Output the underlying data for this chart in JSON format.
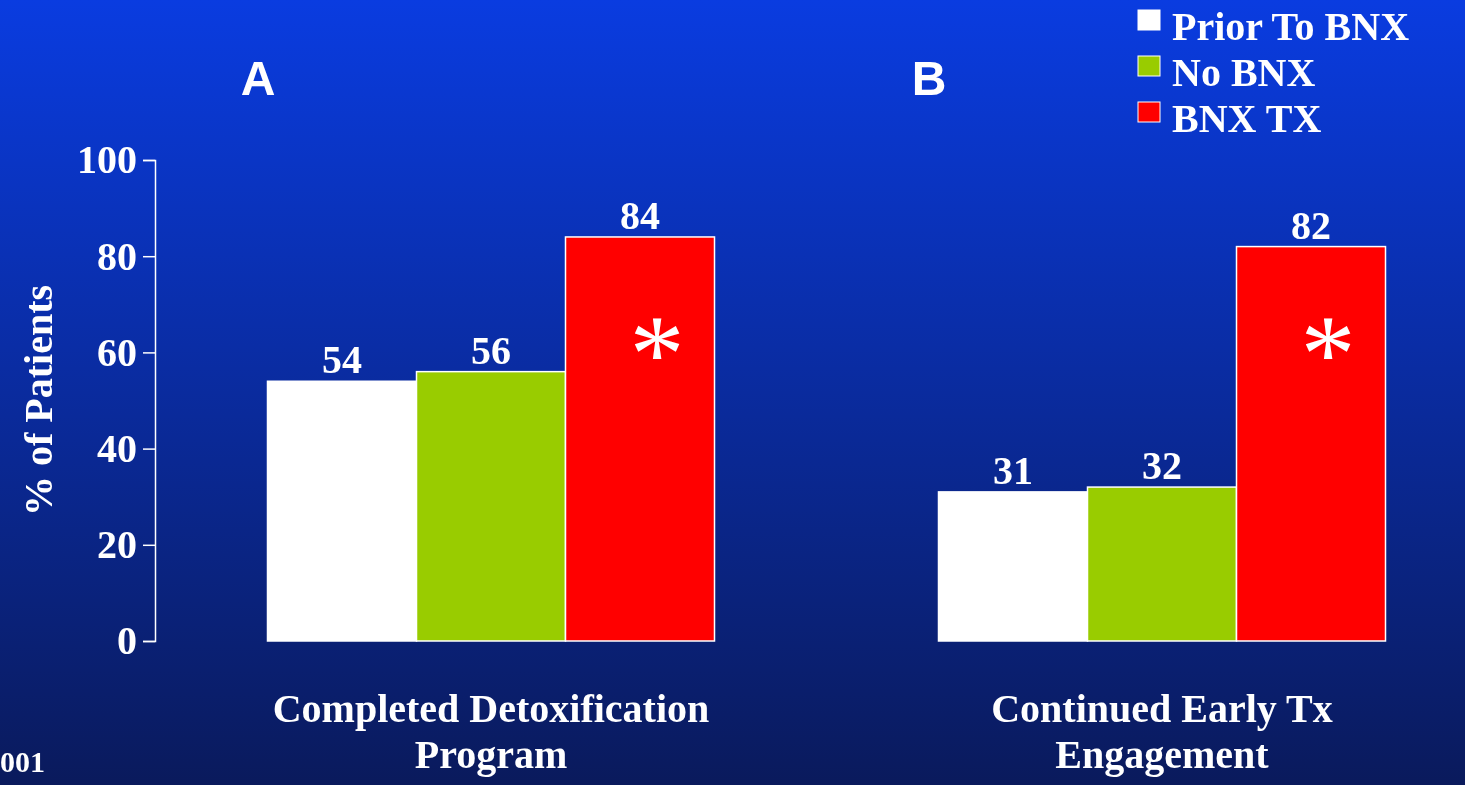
{
  "chart_data": {
    "type": "bar",
    "ylabel": "% of Patients",
    "categories": [
      "Completed Detoxification Program",
      "Continued Early Tx Engagement"
    ],
    "series": [
      {
        "name": "Prior To BNX",
        "color": "#ffffff",
        "values": [
          54,
          31
        ]
      },
      {
        "name": "No BNX",
        "color": "#99cc00",
        "values": [
          56,
          32
        ]
      },
      {
        "name": "BNX TX",
        "color": "#ff0000",
        "values": [
          84,
          82
        ]
      }
    ],
    "ylim": [
      0,
      100
    ],
    "yticks": [
      0,
      20,
      40,
      60,
      80,
      100
    ],
    "data_labels": true,
    "legend": "top right",
    "grid": false,
    "annotations": [
      "A",
      "B",
      "*",
      "*",
      "001"
    ]
  }
}
